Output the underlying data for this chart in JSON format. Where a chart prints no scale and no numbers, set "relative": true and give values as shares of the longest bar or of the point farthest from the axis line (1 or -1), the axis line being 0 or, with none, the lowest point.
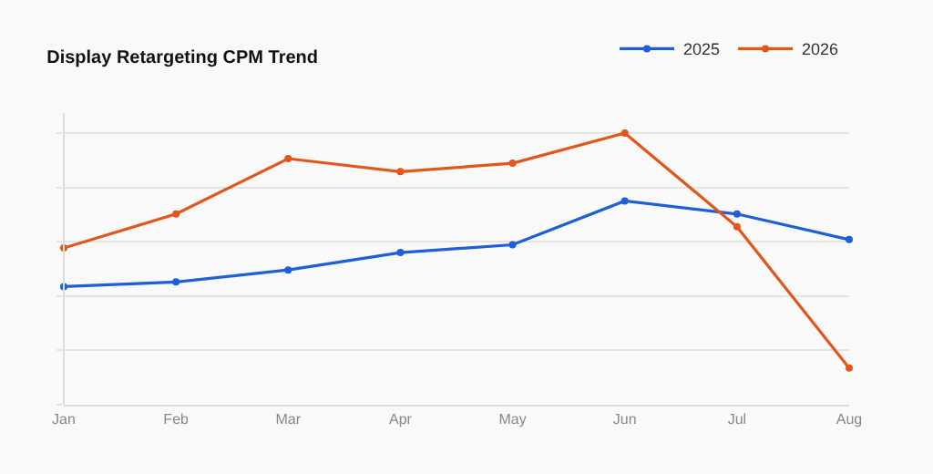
{
  "chart_data": {
    "type": "line",
    "title": "Display Retargeting CPM Trend",
    "relative": true,
    "categories": [
      "Jan",
      "Feb",
      "Mar",
      "Apr",
      "May",
      "Jun",
      "Jul",
      "Aug"
    ],
    "series": [
      {
        "name": "2025",
        "color": "#1f5fd6",
        "values": [
          0.435,
          0.452,
          0.496,
          0.56,
          0.589,
          0.75,
          0.702,
          0.608
        ]
      },
      {
        "name": "2026",
        "color": "#e0561b",
        "values": [
          0.577,
          0.702,
          0.906,
          0.858,
          0.889,
          1,
          0.655,
          0.135
        ]
      }
    ],
    "grid": "y",
    "legend": "top right",
    "marker": "circle",
    "line_style": "solid"
  }
}
